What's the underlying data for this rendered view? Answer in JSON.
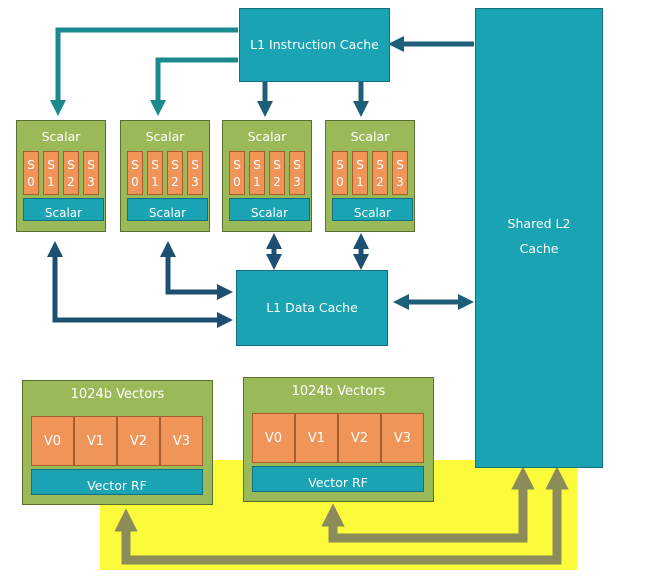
{
  "instruction_cache": "L1 Instruction Cache",
  "data_cache": "L1 Data Cache",
  "l2_cache": {
    "line1": "Shared L2",
    "line2": "Cache"
  },
  "scalar_cores": [
    {
      "title": "Scalar",
      "regfile": "Scalar",
      "lanes": [
        {
          "a": "S",
          "b": "0"
        },
        {
          "a": "S",
          "b": "1"
        },
        {
          "a": "S",
          "b": "2"
        },
        {
          "a": "S",
          "b": "3"
        }
      ]
    },
    {
      "title": "Scalar",
      "regfile": "Scalar",
      "lanes": [
        {
          "a": "S",
          "b": "0"
        },
        {
          "a": "S",
          "b": "1"
        },
        {
          "a": "S",
          "b": "2"
        },
        {
          "a": "S",
          "b": "3"
        }
      ]
    },
    {
      "title": "Scalar",
      "regfile": "Scalar",
      "lanes": [
        {
          "a": "S",
          "b": "0"
        },
        {
          "a": "S",
          "b": "1"
        },
        {
          "a": "S",
          "b": "2"
        },
        {
          "a": "S",
          "b": "3"
        }
      ]
    },
    {
      "title": "Scalar",
      "regfile": "Scalar",
      "lanes": [
        {
          "a": "S",
          "b": "0"
        },
        {
          "a": "S",
          "b": "1"
        },
        {
          "a": "S",
          "b": "2"
        },
        {
          "a": "S",
          "b": "3"
        }
      ]
    }
  ],
  "vector_units": [
    {
      "title": "1024b Vectors",
      "regfile": "Vector RF",
      "lanes": [
        "V0",
        "V1",
        "V2",
        "V3"
      ]
    },
    {
      "title": "1024b Vectors",
      "regfile": "Vector RF",
      "lanes": [
        "V0",
        "V1",
        "V2",
        "V3"
      ]
    }
  ],
  "colors": {
    "cache": "#1aa3b3",
    "core": "#9aba59",
    "lane": "#f0955a",
    "arrow_dark": "#1d4f72",
    "arrow_teal": "#1a8a8f",
    "arrow_olive": "#8c8c5a",
    "highlight": "#fbfb3b"
  }
}
